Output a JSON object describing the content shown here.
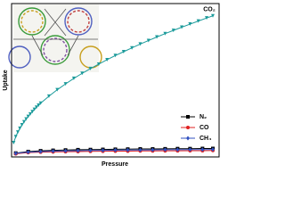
{
  "chart_data": {
    "type": "line",
    "xlabel": "Pressure",
    "ylabel": "Uptake",
    "xlim": [
      0,
      100
    ],
    "ylim": [
      0,
      100
    ],
    "legend": "right",
    "series": [
      {
        "name": "CO₂",
        "color": "#1a9a9a",
        "marker": "triangle",
        "label_at_end": true,
        "x": [
          1,
          2,
          3,
          4,
          5,
          6,
          7,
          8,
          9,
          10,
          11,
          12,
          13,
          14,
          18,
          22,
          26,
          30,
          34,
          38,
          42,
          46,
          50,
          54,
          58,
          62,
          66,
          70,
          74,
          78,
          82,
          86,
          90,
          94,
          97
        ],
        "values": [
          9.3,
          13.2,
          16.2,
          18.7,
          20.9,
          22.9,
          24.7,
          26.4,
          28.0,
          29.5,
          31.0,
          32.4,
          33.7,
          35.0,
          39.6,
          43.8,
          47.6,
          51.2,
          54.5,
          57.6,
          60.5,
          63.4,
          66.1,
          68.6,
          71.1,
          73.6,
          75.9,
          78.2,
          80.4,
          82.5,
          84.6,
          86.6,
          88.6,
          90.6,
          92.0
        ]
      },
      {
        "name": "N₂",
        "color": "#000000",
        "marker": "square",
        "x": [
          2,
          8,
          14,
          20,
          26,
          32,
          38,
          44,
          50,
          56,
          62,
          68,
          74,
          80,
          86,
          92,
          97
        ],
        "values": [
          2.5,
          3.5,
          4.0,
          4.3,
          4.5,
          4.7,
          4.8,
          4.9,
          5.0,
          5.1,
          5.2,
          5.2,
          5.3,
          5.4,
          5.4,
          5.5,
          5.5
        ]
      },
      {
        "name": "CO",
        "color": "#e02020",
        "marker": "circle",
        "x": [
          2,
          8,
          14,
          20,
          26,
          32,
          38,
          44,
          50,
          56,
          62,
          68,
          74,
          80,
          86,
          92,
          97
        ],
        "values": [
          2.0,
          2.8,
          3.1,
          3.3,
          3.4,
          3.5,
          3.6,
          3.7,
          3.8,
          3.8,
          3.9,
          3.9,
          4.0,
          4.0,
          4.1,
          4.1,
          4.2
        ]
      },
      {
        "name": "CH₄",
        "color": "#3050c0",
        "marker": "diamond",
        "x": [
          2,
          8,
          14,
          20,
          26,
          32,
          38,
          44,
          50,
          56,
          62,
          68,
          74,
          80,
          86,
          92,
          97
        ],
        "values": [
          2.3,
          3.1,
          3.5,
          3.8,
          3.9,
          4.1,
          4.2,
          4.3,
          4.4,
          4.5,
          4.5,
          4.6,
          4.7,
          4.7,
          4.8,
          4.8,
          4.9
        ]
      }
    ]
  }
}
